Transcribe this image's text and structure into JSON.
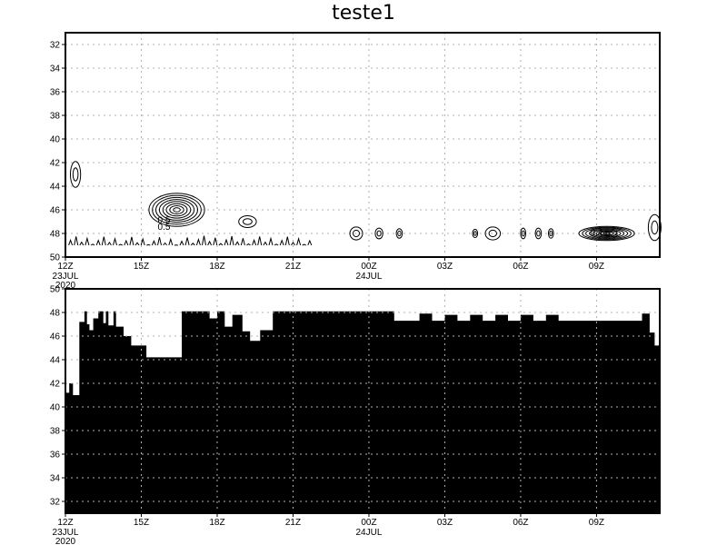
{
  "title": "teste1",
  "chart_data": [
    {
      "type": "contour",
      "panel": "top",
      "x_ticks": [
        "12Z",
        "15Z",
        "18Z",
        "21Z",
        "00Z",
        "03Z",
        "06Z",
        "09Z"
      ],
      "x_sublabels": [
        {
          "at": "12Z",
          "lines": [
            "23JUL",
            "2020"
          ]
        },
        {
          "at": "00Z",
          "lines": [
            "24JUL"
          ]
        }
      ],
      "x_range_hours": [
        0,
        23.5
      ],
      "y_ticks": [
        32,
        34,
        36,
        38,
        40,
        42,
        44,
        46,
        48,
        50
      ],
      "ylim": [
        50,
        31
      ],
      "grid": true,
      "contour_labels": [
        {
          "text": "0.5",
          "x_hour": 3.9,
          "y": 47.1
        },
        {
          "text": "0.5",
          "x_hour": 3.9,
          "y": 47.7
        },
        {
          "text": "0.4",
          "x_hour": 21.0,
          "y": 48.2
        },
        {
          "text": "0.3",
          "x_hour": 21.6,
          "y": 48.3
        }
      ],
      "features": [
        {
          "kind": "cluster",
          "x_hour": 0.4,
          "y": 43.0,
          "rx": 0.2,
          "ry": 1.1
        },
        {
          "kind": "cluster",
          "x_hour": 4.4,
          "y": 46.0,
          "rx": 1.1,
          "ry": 1.4
        },
        {
          "kind": "cluster",
          "x_hour": 7.2,
          "y": 47.0,
          "rx": 0.35,
          "ry": 0.5
        },
        {
          "kind": "cluster",
          "x_hour": 11.5,
          "y": 48.0,
          "rx": 0.25,
          "ry": 0.55
        },
        {
          "kind": "cluster",
          "x_hour": 12.4,
          "y": 48.0,
          "rx": 0.15,
          "ry": 0.45
        },
        {
          "kind": "cluster",
          "x_hour": 13.2,
          "y": 48.0,
          "rx": 0.12,
          "ry": 0.4
        },
        {
          "kind": "cluster",
          "x_hour": 16.2,
          "y": 48.0,
          "rx": 0.1,
          "ry": 0.35
        },
        {
          "kind": "cluster",
          "x_hour": 16.9,
          "y": 48.0,
          "rx": 0.3,
          "ry": 0.55
        },
        {
          "kind": "cluster",
          "x_hour": 18.1,
          "y": 48.0,
          "rx": 0.1,
          "ry": 0.45
        },
        {
          "kind": "cluster",
          "x_hour": 18.7,
          "y": 48.0,
          "rx": 0.12,
          "ry": 0.45
        },
        {
          "kind": "cluster",
          "x_hour": 19.2,
          "y": 48.0,
          "rx": 0.1,
          "ry": 0.4
        },
        {
          "kind": "cluster",
          "x_hour": 21.4,
          "y": 48.0,
          "rx": 1.1,
          "ry": 0.6
        },
        {
          "kind": "cluster",
          "x_hour": 23.3,
          "y": 47.5,
          "rx": 0.25,
          "ry": 1.1
        }
      ]
    },
    {
      "type": "area",
      "panel": "bottom",
      "x_ticks": [
        "12Z",
        "15Z",
        "18Z",
        "21Z",
        "00Z",
        "03Z",
        "06Z",
        "09Z"
      ],
      "x_sublabels": [
        {
          "at": "12Z",
          "lines": [
            "23JUL",
            "2020"
          ]
        },
        {
          "at": "00Z",
          "lines": [
            "24JUL"
          ]
        }
      ],
      "x_range_hours": [
        0,
        23.5
      ],
      "y_ticks": [
        32,
        34,
        36,
        38,
        40,
        42,
        44,
        46,
        48,
        50
      ],
      "ylim": [
        31,
        50
      ],
      "grid": true,
      "fill_color": "#000000",
      "step_x_hours": [
        0,
        0.15,
        0.3,
        0.55,
        0.75,
        0.85,
        0.95,
        1.1,
        1.3,
        1.5,
        1.6,
        1.7,
        1.9,
        2.0,
        2.3,
        2.6,
        3.2,
        3.8,
        4.3,
        4.6,
        5.0,
        5.7,
        6.0,
        6.3,
        6.6,
        7.0,
        7.3,
        7.7,
        8.2,
        8.6,
        9.0,
        10.0,
        12.0,
        13.0,
        14.0,
        14.5,
        15.0,
        15.5,
        16.0,
        16.5,
        17.0,
        17.5,
        18.0,
        18.5,
        19.0,
        19.5,
        20.0,
        20.5,
        21.0,
        22.0,
        22.8,
        23.1,
        23.3
      ],
      "step_values": [
        41.2,
        42.0,
        41.0,
        47.2,
        48.1,
        47.0,
        46.5,
        47.5,
        48.1,
        47.1,
        48.1,
        46.9,
        48.1,
        46.8,
        46.0,
        45.2,
        44.2,
        44.2,
        44.2,
        48.1,
        48.1,
        47.5,
        48.1,
        46.8,
        47.8,
        46.4,
        45.6,
        46.5,
        48.1,
        48.1,
        48.1,
        48.1,
        48.1,
        47.3,
        47.9,
        47.3,
        47.8,
        47.3,
        47.8,
        47.3,
        47.8,
        47.3,
        47.8,
        47.3,
        47.8,
        47.3,
        47.3,
        47.3,
        47.3,
        47.3,
        47.9,
        46.3,
        45.2
      ]
    }
  ]
}
